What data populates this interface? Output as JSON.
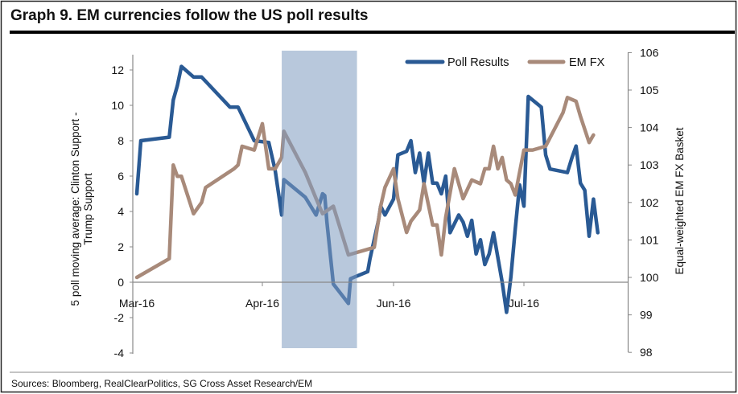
{
  "chart_data": {
    "type": "line",
    "title": "Graph 9. EM currencies follow the US poll results",
    "source": "Sources: Bloomberg, RealClearPolitics,  SG Cross Asset Research/EM",
    "x_ticks": [
      {
        "label": "Mar-16",
        "date": "2016-03-01"
      },
      {
        "label": "Apr-16",
        "date": "2016-04-01"
      },
      {
        "label": "Jun-16",
        "date": "2016-06-01"
      },
      {
        "label": "Jul-16",
        "date": "2016-07-01"
      }
    ],
    "y_left": {
      "label_lines": [
        "5 poll moving average: Clinton Support -",
        "Trump Support"
      ],
      "ylim": [
        -4,
        12
      ],
      "ticks": [
        "-4",
        "-2",
        "0",
        "2",
        "4",
        "6",
        "8",
        "10",
        "12"
      ]
    },
    "y_right": {
      "label": "Equal-weighted EM FX Basket",
      "ylim": [
        98,
        106
      ],
      "ticks": [
        "98",
        "99",
        "100",
        "101",
        "102",
        "103",
        "104",
        "105",
        "106"
      ]
    },
    "legend_position": "top-right",
    "grid": false,
    "shaded_range": {
      "start": "2016-04-10",
      "end": "2016-05-15",
      "color": "#b8c8dc"
    },
    "series": [
      {
        "name": "Poll Results",
        "axis": "left",
        "color": "#2a5a94",
        "points": [
          [
            "2016-03-01",
            5.0
          ],
          [
            "2016-03-02",
            8.0
          ],
          [
            "2016-03-09",
            8.2
          ],
          [
            "2016-03-10",
            10.3
          ],
          [
            "2016-03-11",
            11.1
          ],
          [
            "2016-03-12",
            12.2
          ],
          [
            "2016-03-15",
            11.6
          ],
          [
            "2016-03-17",
            11.6
          ],
          [
            "2016-03-24",
            9.9
          ],
          [
            "2016-03-26",
            9.9
          ],
          [
            "2016-03-30",
            8.0
          ],
          [
            "2016-04-04",
            7.9
          ],
          [
            "2016-04-07",
            6.3
          ],
          [
            "2016-04-10",
            3.8
          ],
          [
            "2016-04-11",
            5.8
          ],
          [
            "2016-04-21",
            4.8
          ],
          [
            "2016-04-26",
            3.8
          ],
          [
            "2016-04-29",
            5.0
          ],
          [
            "2016-04-30",
            4.9
          ],
          [
            "2016-05-01",
            3.4
          ],
          [
            "2016-05-04",
            -0.1
          ],
          [
            "2016-05-11",
            -1.2
          ],
          [
            "2016-05-12",
            0.2
          ],
          [
            "2016-05-20",
            0.6
          ],
          [
            "2016-05-21",
            1.3
          ],
          [
            "2016-05-25",
            3.5
          ],
          [
            "2016-05-26",
            4.3
          ],
          [
            "2016-05-28",
            3.8
          ],
          [
            "2016-06-01",
            4.7
          ],
          [
            "2016-06-02",
            7.2
          ],
          [
            "2016-06-04",
            7.4
          ],
          [
            "2016-06-05",
            8.0
          ],
          [
            "2016-06-06",
            6.2
          ],
          [
            "2016-06-07",
            7.3
          ],
          [
            "2016-06-08",
            5.6
          ],
          [
            "2016-06-09",
            7.3
          ],
          [
            "2016-06-10",
            5.6
          ],
          [
            "2016-06-11",
            5.6
          ],
          [
            "2016-06-12",
            5.0
          ],
          [
            "2016-06-13",
            6.0
          ],
          [
            "2016-06-14",
            2.8
          ],
          [
            "2016-06-16",
            3.8
          ],
          [
            "2016-06-17",
            3.4
          ],
          [
            "2016-06-18",
            2.6
          ],
          [
            "2016-06-19",
            3.5
          ],
          [
            "2016-06-20",
            1.6
          ],
          [
            "2016-06-21",
            2.4
          ],
          [
            "2016-06-22",
            1.0
          ],
          [
            "2016-06-23",
            1.6
          ],
          [
            "2016-06-24",
            2.8
          ],
          [
            "2016-06-26",
            0.0
          ],
          [
            "2016-06-27",
            -1.7
          ],
          [
            "2016-06-28",
            0.3
          ],
          [
            "2016-06-29",
            3.0
          ],
          [
            "2016-06-30",
            5.5
          ],
          [
            "2016-07-01",
            4.3
          ],
          [
            "2016-07-02",
            10.5
          ],
          [
            "2016-07-05",
            9.9
          ],
          [
            "2016-07-06",
            7.2
          ],
          [
            "2016-07-07",
            6.4
          ],
          [
            "2016-07-11",
            6.2
          ],
          [
            "2016-07-12",
            7.0
          ],
          [
            "2016-07-13",
            7.7
          ],
          [
            "2016-07-14",
            5.6
          ],
          [
            "2016-07-15",
            5.2
          ],
          [
            "2016-07-16",
            2.6
          ],
          [
            "2016-07-17",
            4.7
          ],
          [
            "2016-07-18",
            2.8
          ]
        ]
      },
      {
        "name": "EM FX",
        "axis": "right",
        "color": "#a88a7a",
        "points": [
          [
            "2016-03-01",
            100.0
          ],
          [
            "2016-03-09",
            100.5
          ],
          [
            "2016-03-10",
            103.0
          ],
          [
            "2016-03-11",
            102.7
          ],
          [
            "2016-03-12",
            102.7
          ],
          [
            "2016-03-15",
            101.7
          ],
          [
            "2016-03-17",
            102.0
          ],
          [
            "2016-03-18",
            102.4
          ],
          [
            "2016-03-25",
            102.9
          ],
          [
            "2016-03-26",
            103.0
          ],
          [
            "2016-03-27",
            103.5
          ],
          [
            "2016-03-30",
            103.4
          ],
          [
            "2016-04-01",
            104.1
          ],
          [
            "2016-04-04",
            102.9
          ],
          [
            "2016-04-07",
            102.9
          ],
          [
            "2016-04-10",
            103.2
          ],
          [
            "2016-04-11",
            103.9
          ],
          [
            "2016-04-21",
            102.8
          ],
          [
            "2016-04-26",
            102.1
          ],
          [
            "2016-04-29",
            101.7
          ],
          [
            "2016-05-04",
            101.9
          ],
          [
            "2016-05-11",
            100.6
          ],
          [
            "2016-05-23",
            100.8
          ],
          [
            "2016-05-26",
            101.9
          ],
          [
            "2016-05-28",
            102.4
          ],
          [
            "2016-06-01",
            102.9
          ],
          [
            "2016-06-02",
            102.1
          ],
          [
            "2016-06-04",
            101.2
          ],
          [
            "2016-06-05",
            101.5
          ],
          [
            "2016-06-07",
            101.8
          ],
          [
            "2016-06-08",
            102.5
          ],
          [
            "2016-06-10",
            101.4
          ],
          [
            "2016-06-11",
            101.4
          ],
          [
            "2016-06-12",
            100.6
          ],
          [
            "2016-06-13",
            101.6
          ],
          [
            "2016-06-15",
            102.9
          ],
          [
            "2016-06-17",
            102.1
          ],
          [
            "2016-06-19",
            102.6
          ],
          [
            "2016-06-21",
            102.5
          ],
          [
            "2016-06-22",
            102.9
          ],
          [
            "2016-06-23",
            102.9
          ],
          [
            "2016-06-24",
            103.5
          ],
          [
            "2016-06-25",
            102.9
          ],
          [
            "2016-06-26",
            103.2
          ],
          [
            "2016-06-27",
            102.6
          ],
          [
            "2016-06-28",
            102.5
          ],
          [
            "2016-06-29",
            102.2
          ],
          [
            "2016-07-01",
            103.4
          ],
          [
            "2016-07-03",
            103.4
          ],
          [
            "2016-07-06",
            103.5
          ],
          [
            "2016-07-10",
            104.4
          ],
          [
            "2016-07-11",
            104.8
          ],
          [
            "2016-07-13",
            104.7
          ],
          [
            "2016-07-14",
            104.3
          ],
          [
            "2016-07-16",
            103.6
          ],
          [
            "2016-07-17",
            103.8
          ]
        ]
      }
    ]
  }
}
